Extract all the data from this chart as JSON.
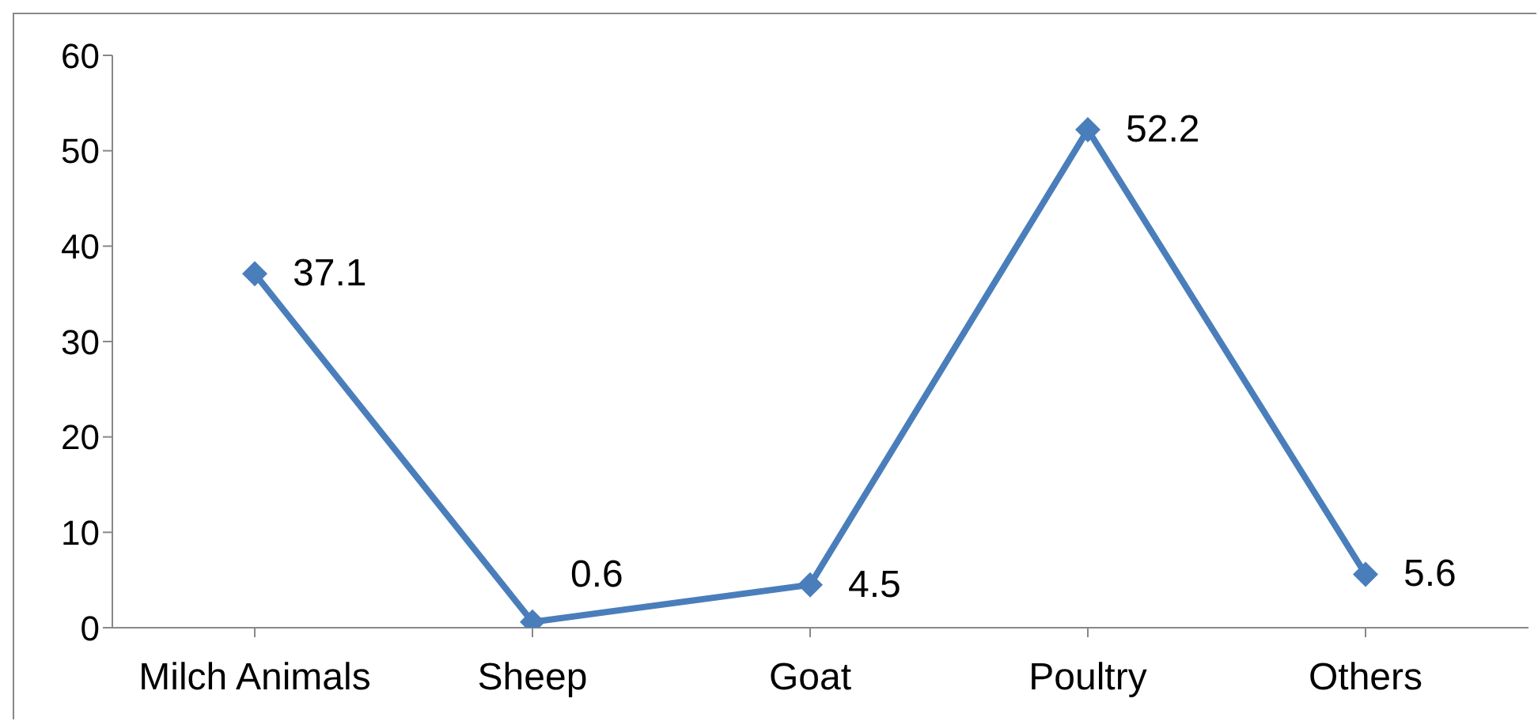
{
  "chart_data": {
    "type": "line",
    "categories": [
      "Milch Animals",
      "Sheep",
      "Goat",
      "Poultry",
      "Others"
    ],
    "series": [
      {
        "color": "#4a7ebb",
        "values": [
          37.1,
          0.6,
          4.5,
          52.2,
          5.6
        ]
      }
    ],
    "ylim": [
      0,
      60
    ],
    "yticks": [
      0,
      10,
      20,
      30,
      40,
      50,
      60
    ],
    "grid": false,
    "legend": false,
    "marker": "diamond",
    "line_style": "solid",
    "data_labels": true
  }
}
